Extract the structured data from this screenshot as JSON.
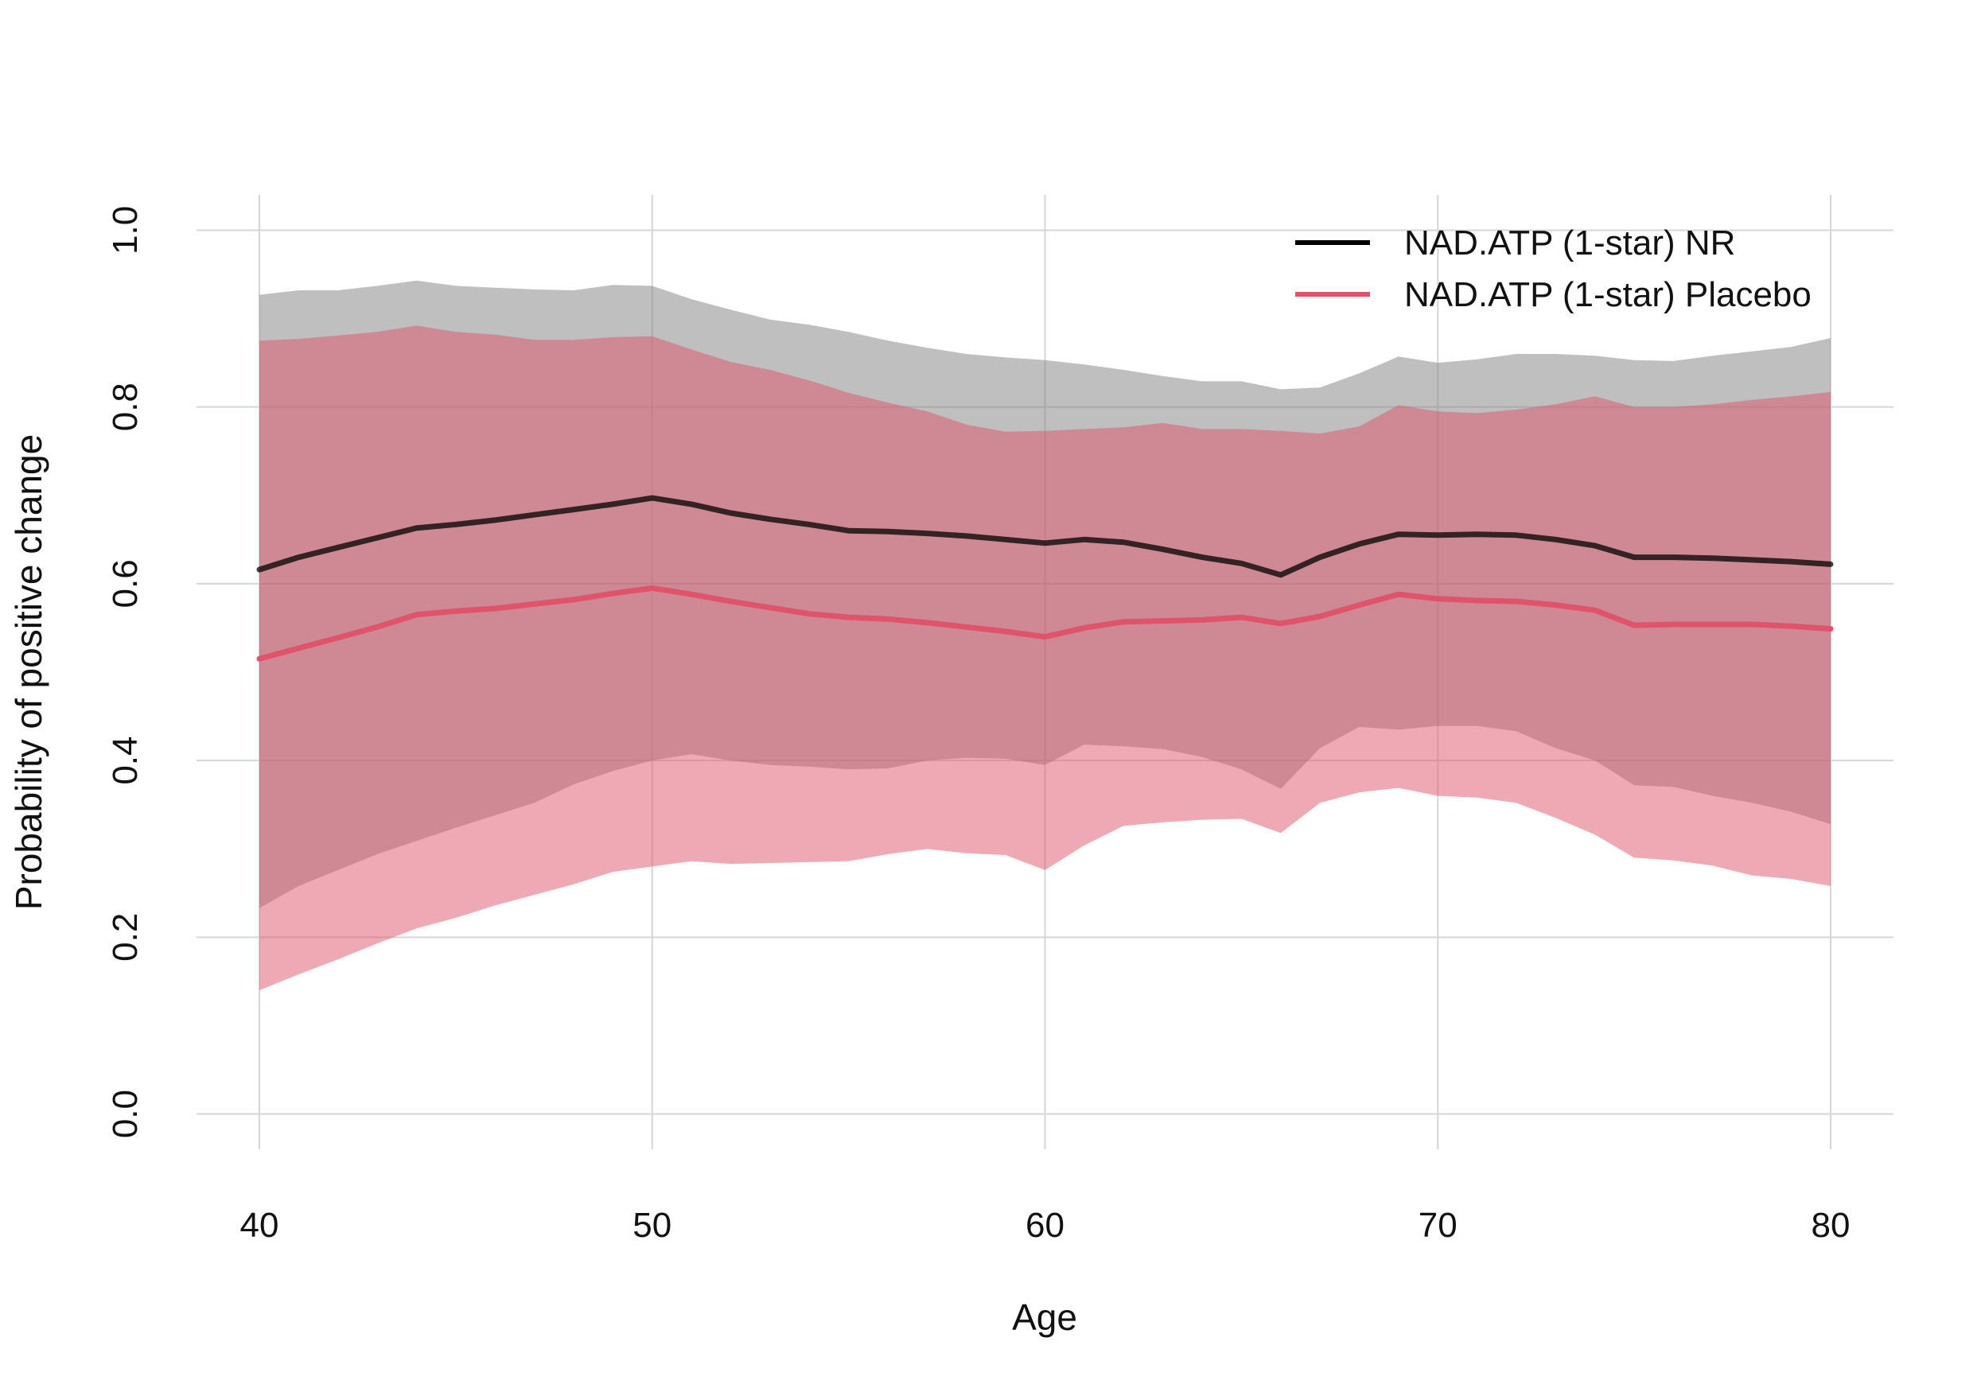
{
  "chart_data": {
    "type": "area",
    "title": "",
    "xlabel": "Age",
    "ylabel": "Probability of positive change",
    "xlim": [
      38.4,
      81.6
    ],
    "ylim": [
      -0.04,
      1.04
    ],
    "grid": true,
    "legend_position": "top-right",
    "x_ticks": [
      "40",
      "50",
      "60",
      "70",
      "80"
    ],
    "x_tick_values": [
      40,
      50,
      60,
      70,
      80
    ],
    "y_ticks": [
      "0.0",
      "0.2",
      "0.4",
      "0.6",
      "0.8",
      "1.0"
    ],
    "y_tick_values": [
      0.0,
      0.2,
      0.4,
      0.6,
      0.8,
      1.0
    ],
    "x": [
      40,
      41,
      42,
      43,
      44,
      45,
      46,
      47,
      48,
      49,
      50,
      51,
      52,
      53,
      54,
      55,
      56,
      57,
      58,
      59,
      60,
      61,
      62,
      63,
      64,
      65,
      66,
      67,
      68,
      69,
      70,
      71,
      72,
      73,
      74,
      75,
      76,
      77,
      78,
      79,
      80
    ],
    "series": [
      {
        "name": "NAD.ATP (1-star) NR",
        "color": "#000000",
        "band_color": "#7f7f7f",
        "values": [
          0.616,
          0.63,
          0.641,
          0.652,
          0.663,
          0.667,
          0.672,
          0.678,
          0.684,
          0.69,
          0.697,
          0.69,
          0.68,
          0.673,
          0.667,
          0.66,
          0.659,
          0.657,
          0.654,
          0.65,
          0.646,
          0.65,
          0.647,
          0.639,
          0.63,
          0.623,
          0.61,
          0.63,
          0.645,
          0.656,
          0.655,
          0.656,
          0.655,
          0.65,
          0.643,
          0.63,
          0.63,
          0.629,
          0.627,
          0.625,
          0.622
        ],
        "lower": [
          0.233,
          0.258,
          0.276,
          0.294,
          0.309,
          0.324,
          0.338,
          0.352,
          0.373,
          0.388,
          0.4,
          0.407,
          0.4,
          0.395,
          0.393,
          0.39,
          0.391,
          0.4,
          0.403,
          0.402,
          0.395,
          0.418,
          0.416,
          0.413,
          0.404,
          0.39,
          0.368,
          0.414,
          0.438,
          0.435,
          0.439,
          0.439,
          0.433,
          0.414,
          0.4,
          0.372,
          0.37,
          0.36,
          0.352,
          0.342,
          0.328
        ],
        "upper": [
          0.927,
          0.932,
          0.932,
          0.937,
          0.943,
          0.937,
          0.935,
          0.933,
          0.932,
          0.938,
          0.937,
          0.922,
          0.91,
          0.899,
          0.893,
          0.885,
          0.875,
          0.867,
          0.86,
          0.856,
          0.853,
          0.848,
          0.842,
          0.835,
          0.829,
          0.829,
          0.82,
          0.822,
          0.838,
          0.857,
          0.85,
          0.854,
          0.86,
          0.86,
          0.858,
          0.853,
          0.852,
          0.858,
          0.863,
          0.868,
          0.878
        ]
      },
      {
        "name": "NAD.ATP (1-star) Placebo",
        "color": "#df536b",
        "band_color": "#df536b",
        "values": [
          0.515,
          0.527,
          0.539,
          0.551,
          0.565,
          0.569,
          0.572,
          0.577,
          0.582,
          0.589,
          0.595,
          0.588,
          0.58,
          0.573,
          0.566,
          0.562,
          0.56,
          0.556,
          0.551,
          0.546,
          0.54,
          0.55,
          0.557,
          0.558,
          0.559,
          0.562,
          0.555,
          0.563,
          0.576,
          0.588,
          0.583,
          0.581,
          0.58,
          0.576,
          0.57,
          0.553,
          0.554,
          0.554,
          0.554,
          0.552,
          0.549
        ],
        "lower": [
          0.14,
          0.158,
          0.175,
          0.193,
          0.21,
          0.222,
          0.236,
          0.248,
          0.26,
          0.274,
          0.28,
          0.286,
          0.283,
          0.284,
          0.285,
          0.286,
          0.294,
          0.3,
          0.295,
          0.293,
          0.276,
          0.304,
          0.326,
          0.33,
          0.333,
          0.334,
          0.318,
          0.352,
          0.364,
          0.369,
          0.36,
          0.358,
          0.352,
          0.335,
          0.316,
          0.29,
          0.287,
          0.281,
          0.27,
          0.266,
          0.258
        ],
        "upper": [
          0.875,
          0.877,
          0.881,
          0.885,
          0.892,
          0.885,
          0.882,
          0.876,
          0.876,
          0.879,
          0.88,
          0.865,
          0.851,
          0.842,
          0.83,
          0.816,
          0.805,
          0.795,
          0.78,
          0.772,
          0.773,
          0.775,
          0.777,
          0.782,
          0.775,
          0.775,
          0.773,
          0.77,
          0.778,
          0.802,
          0.795,
          0.793,
          0.797,
          0.803,
          0.812,
          0.8,
          0.8,
          0.803,
          0.808,
          0.812,
          0.817
        ]
      }
    ]
  }
}
